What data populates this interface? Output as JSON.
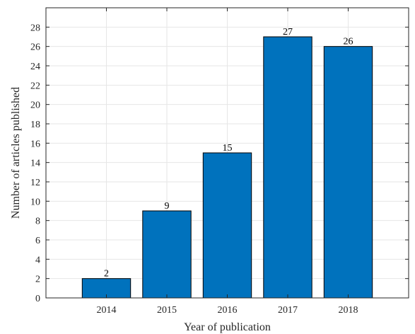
{
  "chart_data": {
    "type": "bar",
    "title": "",
    "xlabel": "Year of publication",
    "ylabel": "Number of articles published",
    "categories": [
      "2014",
      "2015",
      "2016",
      "2017",
      "2018"
    ],
    "values": [
      2,
      9,
      15,
      27,
      26
    ],
    "data_labels": [
      "2",
      "9",
      "15",
      "27",
      "26"
    ],
    "xlim": [
      2013,
      2019
    ],
    "ylim": [
      0,
      30
    ],
    "yticks": [
      0,
      2,
      4,
      6,
      8,
      10,
      12,
      14,
      16,
      18,
      20,
      22,
      24,
      26,
      28
    ],
    "grid": true,
    "legend": "none",
    "colors": {
      "bar_fill": "#0072BD",
      "bar_edge": "#000000",
      "grid": "#e6e6e6",
      "axis": "#262626"
    }
  }
}
